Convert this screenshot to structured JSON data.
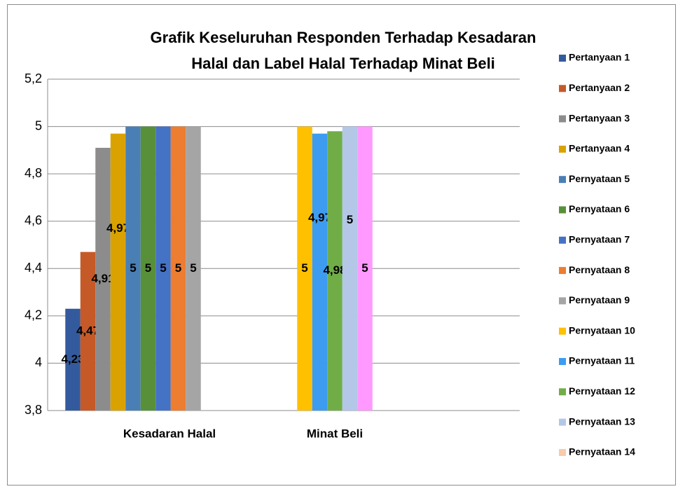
{
  "chart_data": {
    "type": "bar",
    "title": [
      "Grafik Keseluruhan Responden Terhadap Kesadaran",
      "Halal dan Label Halal Terhadap Minat Beli"
    ],
    "categories": [
      "Kesadaran Halal",
      "Minat Beli"
    ],
    "series": [
      {
        "name": "Pertanyaan 1",
        "color": "#335a9c",
        "values": [
          4.23,
          null
        ],
        "value_labels": [
          "4,23",
          null
        ]
      },
      {
        "name": "Pertanyaan 2",
        "color": "#c55a28",
        "values": [
          4.47,
          null
        ],
        "value_labels": [
          "4,47",
          null
        ]
      },
      {
        "name": "Pertanyaan 3",
        "color": "#8c8c8c",
        "values": [
          4.91,
          null
        ],
        "value_labels": [
          "4,91",
          null
        ]
      },
      {
        "name": "Pertanyaan 4",
        "color": "#d9a200",
        "values": [
          4.97,
          null
        ],
        "value_labels": [
          "4,97",
          null
        ]
      },
      {
        "name": "Pernyataan 5",
        "color": "#4a7fb5",
        "values": [
          5,
          null
        ],
        "value_labels": [
          "5",
          null
        ]
      },
      {
        "name": "Pernyataan 6",
        "color": "#58903a",
        "values": [
          5,
          null
        ],
        "value_labels": [
          "5",
          null
        ]
      },
      {
        "name": "Pernyataan 7",
        "color": "#4472c4",
        "values": [
          5,
          null
        ],
        "value_labels": [
          "5",
          null
        ]
      },
      {
        "name": "Pernyataan 8",
        "color": "#ed7d31",
        "values": [
          5,
          null
        ],
        "value_labels": [
          "5",
          null
        ]
      },
      {
        "name": "Pernyataan 9",
        "color": "#a5a5a5",
        "values": [
          5,
          null
        ],
        "value_labels": [
          "5",
          null
        ]
      },
      {
        "name": "Pernyataan 10",
        "color": "#ffc000",
        "values": [
          null,
          5
        ],
        "value_labels": [
          null,
          "5"
        ]
      },
      {
        "name": "Pernyataan 11",
        "color": "#3d9cf0",
        "values": [
          null,
          4.97
        ],
        "value_labels": [
          null,
          "4,97"
        ]
      },
      {
        "name": "Pernyataan 12",
        "color": "#70ad47",
        "values": [
          null,
          4.98
        ],
        "value_labels": [
          null,
          "4,98"
        ]
      },
      {
        "name": "Pernyataan 13",
        "color": "#b4c7e7",
        "values": [
          null,
          5
        ],
        "value_labels": [
          null,
          "5"
        ]
      },
      {
        "name": "Pernyataan 14",
        "color": "#ff99ff",
        "legend_color": "#f8cbad",
        "values": [
          null,
          5
        ],
        "value_labels": [
          null,
          "5"
        ]
      }
    ],
    "ylim": [
      3.8,
      5.2
    ],
    "yticks": [
      {
        "value": 3.8,
        "label": "3,8"
      },
      4,
      {
        "value": 4.2,
        "label": "4,2"
      },
      {
        "value": 4.4,
        "label": "4,4"
      },
      {
        "value": 4.6,
        "label": "4,6"
      },
      {
        "value": 4.8,
        "label": "4,8"
      },
      5,
      {
        "value": 5.2,
        "label": "5,2"
      }
    ],
    "grid": true,
    "legend": "right"
  }
}
